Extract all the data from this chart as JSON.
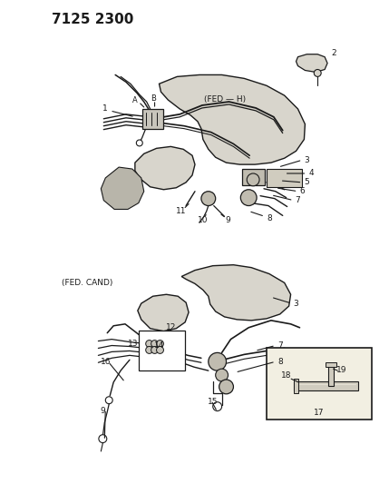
{
  "title": "7125 2300",
  "bg": "#ffffff",
  "lc": "#1a1a1a",
  "figsize": [
    4.29,
    5.33
  ],
  "dpi": 100,
  "top_label": "(FED — H)",
  "bot_label": "(FED. CAND)"
}
